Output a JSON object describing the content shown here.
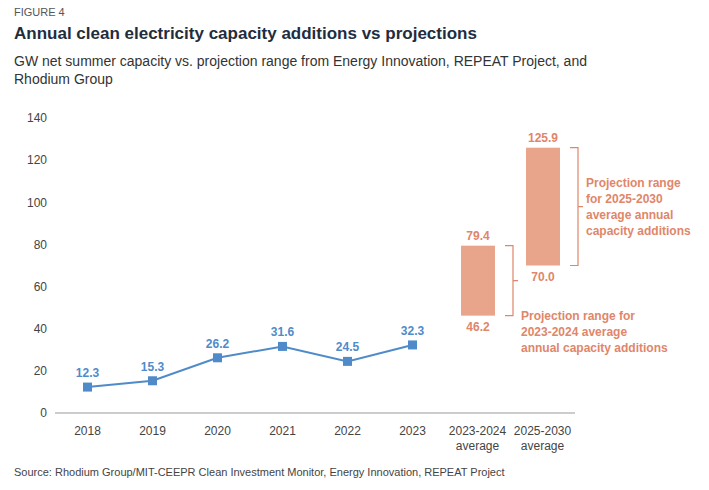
{
  "chart_data": {
    "type": "line",
    "figure_label": "FIGURE 4",
    "title": "Annual clean electricity capacity additions vs projections",
    "subtitle": "GW net summer capacity vs. projection range from Energy Innovation, REPEAT Project, and Rhodium Group",
    "source": "Source: Rhodium Group/MIT-CEEPR Clean Investment Monitor, Energy Innovation, REPEAT Project",
    "categories": [
      "2018",
      "2019",
      "2020",
      "2021",
      "2022",
      "2023",
      "2023-2024 average",
      "2025-2030 average"
    ],
    "values": [
      12.3,
      15.3,
      26.2,
      31.6,
      24.5,
      32.3,
      null,
      null
    ],
    "color": "#4f8bc9",
    "marker": "square",
    "data_labels": true,
    "grid": false,
    "ylim": [
      0,
      140
    ],
    "yticks": [
      0,
      20,
      40,
      60,
      80,
      100,
      120,
      140
    ],
    "ranges": {
      "color": "#e9a48c",
      "items": [
        {
          "category": "2023-2024 average",
          "values": [
            46.2,
            79.4
          ],
          "value_labels": [
            "46.2",
            "79.4"
          ],
          "annotation": [
            "Projection range for",
            "2023-2024 average",
            "annual capacity additions"
          ]
        },
        {
          "category": "2025-2030 average",
          "values": [
            70.0,
            125.9
          ],
          "value_labels": [
            "70.0",
            "125.9"
          ],
          "annotation": [
            "Projection range",
            "for 2025-2030",
            "average annual",
            "capacity additions"
          ]
        }
      ]
    }
  }
}
